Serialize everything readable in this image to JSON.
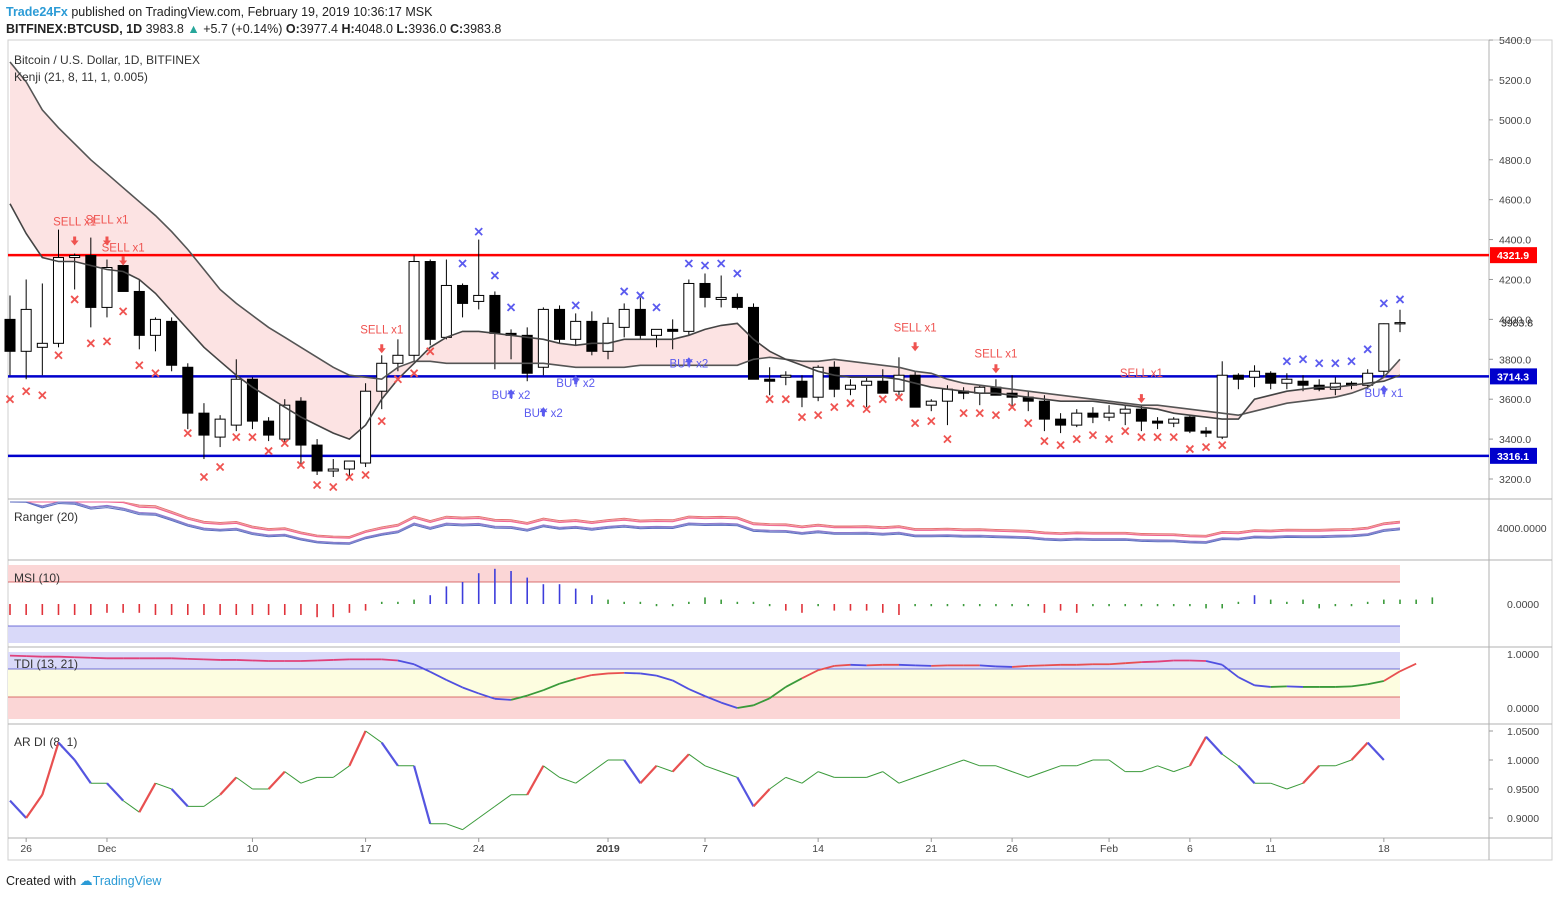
{
  "header": {
    "publisher": "Trade24Fx",
    "published_text": "published on TradingView.com, February 19, 2019 10:36:17 MSK",
    "symbol": "BITFINEX:BTCUSD, 1D",
    "last": "3983.8",
    "change": "+5.7 (+0.14%)",
    "o_label": "O:",
    "o": "3977.4",
    "h_label": "H:",
    "h": "4048.0",
    "l_label": "L:",
    "l": "3936.0",
    "c_label": "C:",
    "c": "3983.8"
  },
  "footer": {
    "created_with": "Created with",
    "brand": "TradingView"
  },
  "colors": {
    "bull": "#ffffff",
    "bear": "#000000",
    "resistance": "#ff0000",
    "support": "#0000cc",
    "sell": "#ef5350",
    "buy": "#5b5bef",
    "cloud": "#fbdcdc"
  },
  "chart_data": {
    "type": "candlestick",
    "title": "Bitcoin / U.S. Dollar, 1D, BITFINEX",
    "indicator": "Kenji (21, 8, 11, 1, 0.005)",
    "y_ticks": [
      "5400.0",
      "5200.0",
      "5000.0",
      "4800.0",
      "4600.0",
      "4400.0",
      "4200.0",
      "4000.0",
      "3800.0",
      "3600.0",
      "3400.0",
      "3200.0"
    ],
    "ylim": [
      3100,
      5420
    ],
    "x_labels": [
      {
        "label": "26",
        "i": 1
      },
      {
        "label": "Dec",
        "i": 6
      },
      {
        "label": "10",
        "i": 15
      },
      {
        "label": "17",
        "i": 22
      },
      {
        "label": "24",
        "i": 29
      },
      {
        "label": "2019",
        "i": 37
      },
      {
        "label": "7",
        "i": 43
      },
      {
        "label": "14",
        "i": 50
      },
      {
        "label": "21",
        "i": 57
      },
      {
        "label": "26",
        "i": 62
      },
      {
        "label": "Feb",
        "i": 68
      },
      {
        "label": "6",
        "i": 73
      },
      {
        "label": "11",
        "i": 78
      },
      {
        "label": "18",
        "i": 85
      }
    ],
    "levels": [
      {
        "name": "resistance",
        "value": 4321.9,
        "label": "4321.9"
      },
      {
        "name": "support-upper",
        "value": 3714.3,
        "label": "3714.3"
      },
      {
        "name": "support-lower",
        "value": 3316.1,
        "label": "3316.1"
      }
    ],
    "last_price_label": "3983.8",
    "candles": [
      [
        4000,
        4120,
        3720,
        3840
      ],
      [
        3840,
        4200,
        3700,
        4050
      ],
      [
        3860,
        4180,
        3720,
        3880
      ],
      [
        3880,
        4450,
        3860,
        4310
      ],
      [
        4310,
        4330,
        4150,
        4320
      ],
      [
        4320,
        4410,
        3960,
        4060
      ],
      [
        4060,
        4300,
        4010,
        4260
      ],
      [
        4270,
        4280,
        4150,
        4140
      ],
      [
        4140,
        4200,
        3850,
        3920
      ],
      [
        3920,
        4010,
        3840,
        4000
      ],
      [
        3990,
        4010,
        3740,
        3770
      ],
      [
        3760,
        3780,
        3450,
        3530
      ],
      [
        3530,
        3580,
        3300,
        3420
      ],
      [
        3410,
        3520,
        3360,
        3500
      ],
      [
        3470,
        3800,
        3440,
        3700
      ],
      [
        3700,
        3710,
        3450,
        3490
      ],
      [
        3490,
        3510,
        3390,
        3420
      ],
      [
        3400,
        3600,
        3380,
        3570
      ],
      [
        3590,
        3610,
        3270,
        3370
      ],
      [
        3370,
        3400,
        3220,
        3240
      ],
      [
        3240,
        3300,
        3210,
        3250
      ],
      [
        3250,
        3280,
        3210,
        3290
      ],
      [
        3280,
        3680,
        3260,
        3640
      ],
      [
        3640,
        3820,
        3550,
        3780
      ],
      [
        3780,
        3900,
        3740,
        3820
      ],
      [
        3820,
        4320,
        3790,
        4290
      ],
      [
        4290,
        4300,
        3870,
        3900
      ],
      [
        3910,
        4300,
        3900,
        4170
      ],
      [
        4170,
        4180,
        4010,
        4080
      ],
      [
        4090,
        4400,
        4050,
        4120
      ],
      [
        4120,
        4140,
        3750,
        3930
      ],
      [
        3930,
        3950,
        3800,
        3920
      ],
      [
        3920,
        3960,
        3690,
        3730
      ],
      [
        3760,
        4060,
        3720,
        4050
      ],
      [
        4050,
        4070,
        3880,
        3900
      ],
      [
        3900,
        4030,
        3870,
        3990
      ],
      [
        3990,
        4040,
        3820,
        3840
      ],
      [
        3840,
        4010,
        3800,
        3980
      ],
      [
        3960,
        4080,
        3910,
        4050
      ],
      [
        4050,
        4110,
        3900,
        3920
      ],
      [
        3920,
        3950,
        3860,
        3950
      ],
      [
        3950,
        4000,
        3850,
        3940
      ],
      [
        3940,
        4200,
        3920,
        4180
      ],
      [
        4180,
        4230,
        4060,
        4110
      ],
      [
        4100,
        4220,
        4060,
        4110
      ],
      [
        4110,
        4130,
        4050,
        4060
      ],
      [
        4060,
        4080,
        3700,
        3700
      ],
      [
        3700,
        3760,
        3620,
        3690
      ],
      [
        3710,
        3740,
        3670,
        3720
      ],
      [
        3690,
        3720,
        3560,
        3610
      ],
      [
        3610,
        3770,
        3590,
        3760
      ],
      [
        3760,
        3790,
        3610,
        3650
      ],
      [
        3650,
        3700,
        3620,
        3670
      ],
      [
        3670,
        3710,
        3560,
        3690
      ],
      [
        3690,
        3750,
        3640,
        3630
      ],
      [
        3640,
        3810,
        3620,
        3720
      ],
      [
        3720,
        3740,
        3580,
        3560
      ],
      [
        3570,
        3600,
        3540,
        3590
      ],
      [
        3590,
        3670,
        3470,
        3650
      ],
      [
        3640,
        3660,
        3600,
        3630
      ],
      [
        3630,
        3670,
        3570,
        3660
      ],
      [
        3660,
        3700,
        3620,
        3620
      ],
      [
        3630,
        3720,
        3560,
        3610
      ],
      [
        3610,
        3640,
        3540,
        3590
      ],
      [
        3590,
        3620,
        3440,
        3500
      ],
      [
        3500,
        3530,
        3430,
        3470
      ],
      [
        3470,
        3550,
        3460,
        3530
      ],
      [
        3530,
        3560,
        3480,
        3510
      ],
      [
        3510,
        3570,
        3490,
        3530
      ],
      [
        3530,
        3570,
        3470,
        3550
      ],
      [
        3550,
        3570,
        3440,
        3490
      ],
      [
        3490,
        3510,
        3450,
        3480
      ],
      [
        3480,
        3510,
        3460,
        3500
      ],
      [
        3510,
        3520,
        3430,
        3440
      ],
      [
        3440,
        3460,
        3410,
        3430
      ],
      [
        3410,
        3790,
        3400,
        3720
      ],
      [
        3720,
        3730,
        3650,
        3700
      ],
      [
        3710,
        3770,
        3660,
        3740
      ],
      [
        3730,
        3740,
        3650,
        3680
      ],
      [
        3680,
        3730,
        3650,
        3700
      ],
      [
        3690,
        3720,
        3640,
        3670
      ],
      [
        3670,
        3700,
        3640,
        3650
      ],
      [
        3650,
        3710,
        3620,
        3680
      ],
      [
        3680,
        3690,
        3650,
        3670
      ],
      [
        3670,
        3750,
        3650,
        3730
      ],
      [
        3740,
        3980,
        3710,
        3978
      ],
      [
        3977.4,
        4048,
        3936,
        3983.8
      ]
    ],
    "trail_upper": [
      5290,
      5190,
      5050,
      4960,
      4880,
      4800,
      4730,
      4660,
      4590,
      4520,
      4440,
      4350,
      4250,
      4150,
      4080,
      4020,
      3960,
      3910,
      3860,
      3810,
      3760,
      3720,
      3710,
      3700,
      3760,
      3790,
      3790,
      3780,
      3780,
      3780,
      3780,
      3780,
      3780,
      3780,
      3770,
      3760,
      3760,
      3760,
      3760,
      3770,
      3770,
      3770,
      3770,
      3770,
      3770,
      3770,
      3800,
      3810,
      3800,
      3790,
      3790,
      3800,
      3790,
      3780,
      3770,
      3760,
      3740,
      3730,
      3700,
      3680,
      3670,
      3660,
      3650,
      3640,
      3630,
      3620,
      3610,
      3600,
      3590,
      3580,
      3570,
      3570,
      3560,
      3550,
      3540,
      3530,
      3520,
      3540,
      3560,
      3580,
      3590,
      3600,
      3610,
      3630,
      3660,
      3710,
      3800
    ],
    "trail_lower": [
      4580,
      4430,
      4310,
      4290,
      4290,
      4270,
      4250,
      4240,
      4200,
      4130,
      4040,
      3950,
      3860,
      3790,
      3720,
      3660,
      3610,
      3560,
      3510,
      3470,
      3430,
      3400,
      3470,
      3600,
      3700,
      3780,
      3860,
      3910,
      3940,
      3940,
      3930,
      3920,
      3910,
      3900,
      3880,
      3870,
      3880,
      3880,
      3900,
      3900,
      3900,
      3900,
      3920,
      3950,
      3970,
      3980,
      3900,
      3840,
      3800,
      3770,
      3740,
      3720,
      3710,
      3710,
      3710,
      3700,
      3680,
      3660,
      3650,
      3640,
      3630,
      3630,
      3620,
      3610,
      3600,
      3590,
      3590,
      3590,
      3580,
      3570,
      3560,
      3550,
      3530,
      3520,
      3510,
      3500,
      3500,
      3600,
      3620,
      3640,
      3650,
      3660,
      3660,
      3670,
      3680,
      3690,
      3720
    ],
    "signals": [
      {
        "type": "sell",
        "label": "SELL x1",
        "i": 4,
        "y": 4370,
        "label_y": 4470
      },
      {
        "type": "sell",
        "label": "SELL x1",
        "i": 6,
        "y": 4370,
        "label_y": 4480
      },
      {
        "type": "sell",
        "label": "SELL x1",
        "i": 7,
        "y": 4270,
        "label_y": 4340
      },
      {
        "type": "sell",
        "label": "SELL x1",
        "i": 23,
        "y": 3830,
        "label_y": 3930
      },
      {
        "type": "buy",
        "label": "BUY x2",
        "i": 31,
        "y": 3650,
        "label_y": 3600
      },
      {
        "type": "buy",
        "label": "BUY x2",
        "i": 33,
        "y": 3560,
        "label_y": 3510
      },
      {
        "type": "buy",
        "label": "BUY x2",
        "i": 35,
        "y": 3720,
        "label_y": 3660
      },
      {
        "type": "buy",
        "label": "BUY x2",
        "i": 42,
        "y": 3810,
        "label_y": 3760
      },
      {
        "type": "sell",
        "label": "SELL x1",
        "i": 56,
        "y": 3840,
        "label_y": 3940
      },
      {
        "type": "sell",
        "label": "SELL x1",
        "i": 61,
        "y": 3730,
        "label_y": 3810
      },
      {
        "type": "sell",
        "label": "SELL x1",
        "i": 70,
        "y": 3580,
        "label_y": 3710
      },
      {
        "type": "buy",
        "label": "BUY x1",
        "i": 85,
        "y": 3670,
        "label_y": 3610
      }
    ],
    "crosses_below": [
      [
        0,
        3600
      ],
      [
        1,
        3640
      ],
      [
        2,
        3620
      ],
      [
        3,
        3820
      ],
      [
        4,
        4100
      ],
      [
        5,
        3880
      ],
      [
        6,
        3890
      ],
      [
        7,
        4040
      ],
      [
        8,
        3770
      ],
      [
        9,
        3730
      ],
      [
        11,
        3430
      ],
      [
        12,
        3210
      ],
      [
        13,
        3260
      ],
      [
        14,
        3410
      ],
      [
        15,
        3410
      ],
      [
        16,
        3340
      ],
      [
        17,
        3380
      ],
      [
        18,
        3270
      ],
      [
        19,
        3170
      ],
      [
        20,
        3160
      ],
      [
        21,
        3210
      ],
      [
        22,
        3220
      ],
      [
        23,
        3490
      ],
      [
        24,
        3700
      ],
      [
        25,
        3730
      ],
      [
        26,
        3840
      ],
      [
        47,
        3600
      ],
      [
        48,
        3600
      ],
      [
        49,
        3510
      ],
      [
        50,
        3520
      ],
      [
        51,
        3560
      ],
      [
        52,
        3580
      ],
      [
        53,
        3550
      ],
      [
        54,
        3600
      ],
      [
        55,
        3610
      ],
      [
        56,
        3480
      ],
      [
        57,
        3490
      ],
      [
        58,
        3400
      ],
      [
        59,
        3530
      ],
      [
        60,
        3530
      ],
      [
        61,
        3520
      ],
      [
        62,
        3560
      ],
      [
        63,
        3480
      ],
      [
        64,
        3390
      ],
      [
        65,
        3370
      ],
      [
        66,
        3400
      ],
      [
        67,
        3420
      ],
      [
        68,
        3400
      ],
      [
        69,
        3440
      ],
      [
        70,
        3410
      ],
      [
        71,
        3410
      ],
      [
        72,
        3410
      ],
      [
        73,
        3350
      ],
      [
        74,
        3360
      ],
      [
        75,
        3370
      ]
    ],
    "crosses_above": [
      [
        28,
        4280
      ],
      [
        29,
        4440
      ],
      [
        30,
        4220
      ],
      [
        31,
        4060
      ],
      [
        35,
        4070
      ],
      [
        38,
        4140
      ],
      [
        39,
        4120
      ],
      [
        40,
        4060
      ],
      [
        42,
        4280
      ],
      [
        43,
        4270
      ],
      [
        44,
        4280
      ],
      [
        45,
        4230
      ],
      [
        79,
        3790
      ],
      [
        80,
        3800
      ],
      [
        81,
        3780
      ],
      [
        82,
        3780
      ],
      [
        83,
        3790
      ],
      [
        84,
        3850
      ],
      [
        85,
        4080
      ],
      [
        86,
        4100
      ]
    ],
    "panels": [
      {
        "name": "Ranger (20)",
        "axis_label": "4000.0000"
      },
      {
        "name": "MSI (10)",
        "axis_label": "0.0000"
      },
      {
        "name": "TDI (13, 21)",
        "axis_labels": [
          "1.0000",
          "0.0000"
        ]
      },
      {
        "name": "AR DI (8, 1)",
        "axis_labels": [
          "1.0500",
          "1.0000",
          "0.9500",
          "0.9000"
        ]
      }
    ],
    "msi": [
      -0.5,
      -0.5,
      -0.5,
      -0.5,
      -0.5,
      -0.5,
      -0.4,
      -0.4,
      -0.4,
      -0.5,
      -0.5,
      -0.5,
      -0.5,
      -0.5,
      -0.5,
      -0.5,
      -0.5,
      -0.5,
      -0.5,
      -0.6,
      -0.6,
      -0.4,
      -0.3,
      0.1,
      0.1,
      0.2,
      0.4,
      0.8,
      1.0,
      1.4,
      1.6,
      1.5,
      1.2,
      0.9,
      0.9,
      0.7,
      0.4,
      0.2,
      0.1,
      0.1,
      -0.1,
      -0.1,
      0.1,
      0.3,
      0.2,
      0.1,
      0.1,
      -0.1,
      -0.3,
      -0.4,
      -0.1,
      -0.3,
      -0.3,
      -0.3,
      -0.4,
      -0.5,
      -0.1,
      -0.1,
      -0.1,
      -0.1,
      -0.1,
      -0.1,
      -0.1,
      -0.1,
      -0.4,
      -0.3,
      -0.4,
      -0.1,
      -0.1,
      -0.1,
      -0.1,
      -0.1,
      -0.1,
      -0.1,
      -0.2,
      -0.2,
      0.1,
      0.4,
      0.2,
      0.1,
      0.2,
      -0.2,
      -0.1,
      -0.1,
      0.1,
      0.2,
      0.2,
      0.2,
      0.3
    ],
    "tdi": [
      0.97,
      0.96,
      0.95,
      0.95,
      0.94,
      0.93,
      0.92,
      0.92,
      0.92,
      0.92,
      0.92,
      0.91,
      0.9,
      0.89,
      0.89,
      0.88,
      0.87,
      0.87,
      0.87,
      0.88,
      0.89,
      0.9,
      0.9,
      0.9,
      0.88,
      0.81,
      0.67,
      0.52,
      0.38,
      0.27,
      0.17,
      0.15,
      0.23,
      0.33,
      0.45,
      0.54,
      0.61,
      0.64,
      0.65,
      0.64,
      0.6,
      0.51,
      0.35,
      0.22,
      0.1,
      0.0,
      0.05,
      0.18,
      0.39,
      0.55,
      0.7,
      0.78,
      0.8,
      0.79,
      0.8,
      0.8,
      0.79,
      0.78,
      0.79,
      0.79,
      0.79,
      0.77,
      0.76,
      0.78,
      0.79,
      0.8,
      0.8,
      0.81,
      0.81,
      0.83,
      0.85,
      0.86,
      0.88,
      0.88,
      0.87,
      0.8,
      0.57,
      0.42,
      0.39,
      0.4,
      0.39,
      0.39,
      0.39,
      0.4,
      0.44,
      0.5,
      0.68,
      0.82
    ],
    "ardi": [
      0.93,
      0.9,
      0.94,
      1.03,
      1.0,
      0.96,
      0.96,
      0.93,
      0.91,
      0.96,
      0.95,
      0.92,
      0.92,
      0.94,
      0.97,
      0.95,
      0.95,
      0.98,
      0.96,
      0.97,
      0.97,
      0.99,
      1.05,
      1.03,
      0.99,
      0.99,
      0.89,
      0.89,
      0.88,
      0.9,
      0.92,
      0.94,
      0.94,
      0.99,
      0.97,
      0.96,
      0.98,
      1.0,
      1.0,
      0.96,
      0.99,
      0.98,
      1.01,
      0.99,
      0.98,
      0.97,
      0.92,
      0.95,
      0.97,
      0.96,
      0.98,
      0.97,
      0.97,
      0.97,
      0.98,
      0.96,
      0.97,
      0.98,
      0.99,
      1.0,
      0.99,
      0.99,
      0.98,
      0.97,
      0.98,
      0.99,
      0.99,
      1.0,
      1.0,
      0.98,
      0.98,
      0.99,
      0.98,
      0.99,
      1.04,
      1.01,
      0.99,
      0.96,
      0.96,
      0.95,
      0.96,
      0.99,
      0.99,
      1.0,
      1.03,
      1.0
    ]
  }
}
